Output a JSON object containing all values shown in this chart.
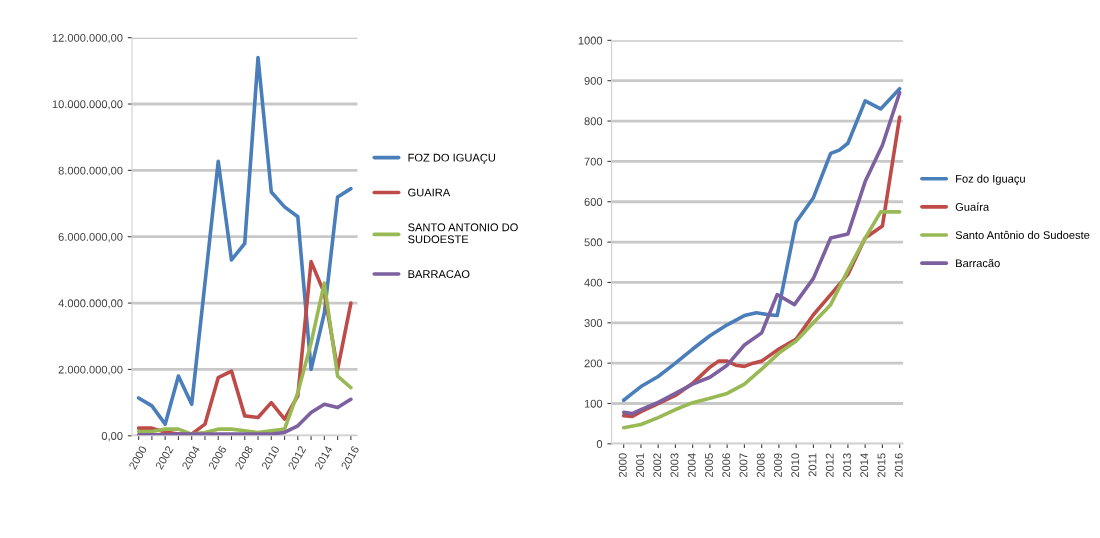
{
  "chart_data": [
    {
      "type": "line",
      "categories": [
        "2000",
        null,
        "2002",
        null,
        "2004",
        null,
        "2006",
        null,
        "2008",
        null,
        "2010",
        null,
        "2012",
        null,
        "2014",
        null,
        "2016"
      ],
      "series": [
        {
          "name": "FOZ DO IGUAÇU",
          "color": "#4a7ebb",
          "values": [
            1140000,
            900000,
            350000,
            1800000,
            950000,
            4600000,
            8270000,
            5300000,
            5800000,
            11400000,
            7350000,
            6900000,
            6600000,
            2000000,
            3700000,
            7200000,
            7450000
          ]
        },
        {
          "name": "GUAIRA",
          "color": "#be4b48",
          "values": [
            230000,
            230000,
            110000,
            50000,
            50000,
            350000,
            1750000,
            1950000,
            600000,
            550000,
            1000000,
            500000,
            1200000,
            5250000,
            4300000,
            2000000,
            4000000
          ]
        },
        {
          "name": "SANTO ANTONIO DO\nSUDOESTE",
          "color": "#98b954",
          "values": [
            130000,
            130000,
            200000,
            200000,
            50000,
            100000,
            200000,
            200000,
            150000,
            100000,
            150000,
            200000,
            1300000,
            2800000,
            4600000,
            1800000,
            1450000
          ]
        },
        {
          "name": "BARRACAO",
          "color": "#7d60a0",
          "values": [
            30000,
            30000,
            30000,
            50000,
            50000,
            50000,
            50000,
            50000,
            50000,
            50000,
            50000,
            100000,
            300000,
            700000,
            950000,
            850000,
            1100000
          ]
        }
      ],
      "ylim": [
        0,
        12000000
      ],
      "yticks": [
        {
          "value": 0,
          "label": "0,00"
        },
        {
          "value": 2000000,
          "label": "2.000.000,00"
        },
        {
          "value": 4000000,
          "label": "4.000.000,00"
        },
        {
          "value": 6000000,
          "label": "6.000.000,00"
        },
        {
          "value": 8000000,
          "label": "8.000.000,00"
        },
        {
          "value": 10000000,
          "label": "10.000.000,00"
        },
        {
          "value": 12000000,
          "label": "12.000.000,00"
        }
      ],
      "grid": "y",
      "legend": "right"
    },
    {
      "type": "line",
      "series": [
        {
          "name": "Foz do Iguaçu",
          "color": "#4a7ebb",
          "x": [
            2000,
            2000.5,
            2001,
            2002,
            2003,
            2004,
            2005,
            2006,
            2007,
            2007.7,
            2008.4,
            2008.9,
            2010,
            2011,
            2012,
            2012.5,
            2013,
            2014,
            2014.9,
            2016
          ],
          "values": [
            108,
            125,
            142,
            167,
            200,
            235,
            268,
            295,
            318,
            325,
            320,
            318,
            550,
            610,
            720,
            728,
            745,
            850,
            830,
            880
          ]
        },
        {
          "name": "Guaíra",
          "color": "#be4b48",
          "x": [
            2000,
            2000.5,
            2001,
            2002,
            2003,
            2004,
            2005,
            2005.5,
            2006,
            2006.5,
            2007,
            2007.5,
            2008,
            2009,
            2010,
            2011,
            2012,
            2013,
            2014,
            2015,
            2016
          ],
          "values": [
            70,
            68,
            80,
            100,
            120,
            150,
            190,
            205,
            205,
            195,
            192,
            200,
            205,
            235,
            260,
            320,
            370,
            420,
            510,
            540,
            810
          ]
        },
        {
          "name": "Santo Antônio do Sudoeste",
          "color": "#98b954",
          "x": [
            2000,
            2001,
            2002,
            2003,
            2004,
            2005,
            2006,
            2007,
            2008,
            2009,
            2010,
            2011,
            2012,
            2013,
            2014,
            2014.9,
            2016
          ],
          "values": [
            40,
            48,
            65,
            85,
            102,
            113,
            125,
            148,
            185,
            225,
            255,
            300,
            345,
            430,
            510,
            575,
            575
          ]
        },
        {
          "name": "Barracão",
          "color": "#7d60a0",
          "x": [
            2000,
            2000.5,
            2001,
            2002,
            2003,
            2004,
            2005,
            2006,
            2007,
            2008,
            2008.9,
            2009.9,
            2011,
            2012,
            2012.5,
            2013,
            2014,
            2015,
            2016
          ],
          "values": [
            78,
            75,
            85,
            103,
            125,
            148,
            165,
            195,
            245,
            275,
            370,
            345,
            410,
            510,
            515,
            520,
            650,
            740,
            870
          ]
        }
      ],
      "xlim": [
        1999.3,
        2016.2
      ],
      "xticks": [
        2000,
        2001,
        2002,
        2003,
        2004,
        2005,
        2006,
        2007,
        2008,
        2009,
        2010,
        2011,
        2012,
        2013,
        2014,
        2015,
        2016
      ],
      "ylim": [
        0,
        1000
      ],
      "yticks": [
        0,
        100,
        200,
        300,
        400,
        500,
        600,
        700,
        800,
        900,
        1000
      ],
      "grid": "y",
      "legend": "right"
    }
  ]
}
